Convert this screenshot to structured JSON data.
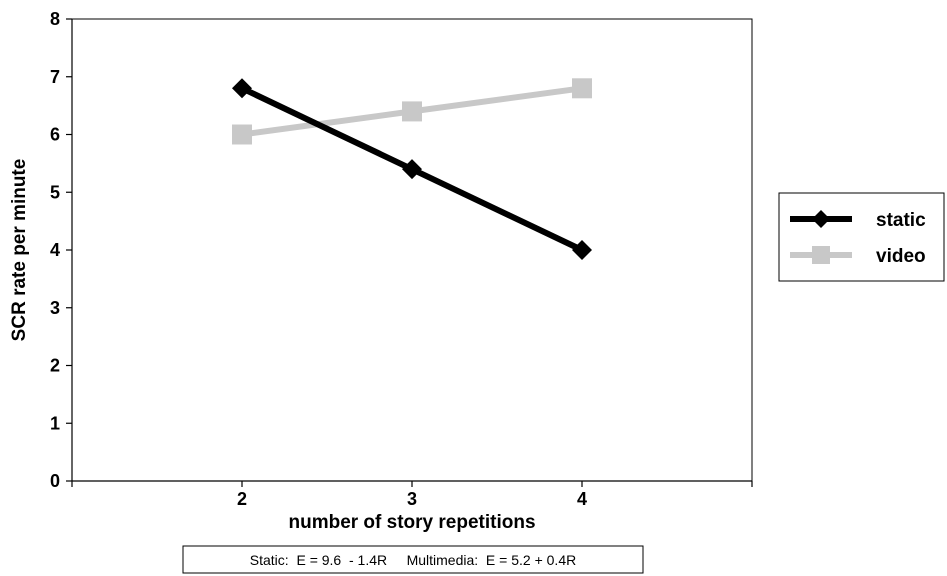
{
  "chart_data": {
    "type": "line",
    "x": [
      2,
      3,
      4
    ],
    "categories": [
      "2",
      "3",
      "4"
    ],
    "series": [
      {
        "name": "static",
        "values": [
          6.8,
          5.4,
          4.0
        ],
        "color": "#000000",
        "marker": "diamond"
      },
      {
        "name": "video",
        "values": [
          6.0,
          6.4,
          6.8
        ],
        "color": "#c8c8c8",
        "marker": "square"
      }
    ],
    "xlabel": "number of story repetitions",
    "ylabel": "SCR rate per minute",
    "ylim": [
      0,
      8
    ],
    "yticks": [
      "0",
      "1",
      "2",
      "3",
      "4",
      "5",
      "6",
      "7",
      "8"
    ],
    "grid": false,
    "legend_position": "right",
    "annotation": "Static:  E = 9.6  - 1.4R     Multimedia:  E = 5.2 + 0.4R"
  }
}
